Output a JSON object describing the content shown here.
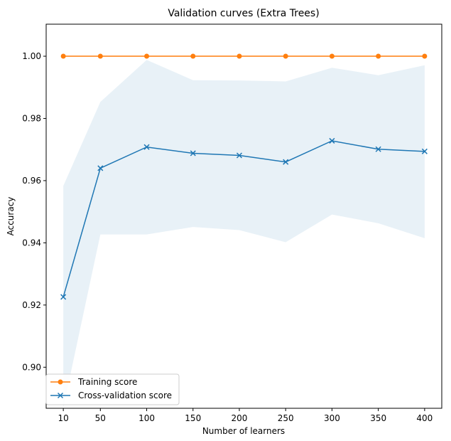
{
  "chart_data": {
    "type": "line",
    "title": "Validation curves (Extra Trees)",
    "xlabel": "Number of learners",
    "ylabel": "Accuracy",
    "x": [
      10,
      50,
      100,
      150,
      200,
      250,
      300,
      350,
      400
    ],
    "xticks": [
      "10",
      "50",
      "100",
      "150",
      "200",
      "250",
      "300",
      "350",
      "400"
    ],
    "ylim": [
      0.8868,
      1.0103
    ],
    "yticks": [
      0.9,
      0.92,
      0.94,
      0.96,
      0.98,
      1.0
    ],
    "ytick_labels": [
      "0.90",
      "0.92",
      "0.94",
      "0.96",
      "0.98",
      "1.00"
    ],
    "grid": false,
    "legend_position": "lower-left",
    "series": [
      {
        "name": "Training score",
        "color": "#ff7f0e",
        "marker": "circle",
        "values": [
          1.0,
          1.0,
          1.0,
          1.0,
          1.0,
          1.0,
          1.0,
          1.0,
          1.0
        ],
        "band_lower": [
          1.0,
          1.0,
          1.0,
          1.0,
          1.0,
          1.0,
          1.0,
          1.0,
          1.0
        ],
        "band_upper": [
          1.0,
          1.0,
          1.0,
          1.0,
          1.0,
          1.0,
          1.0,
          1.0,
          1.0
        ]
      },
      {
        "name": "Cross-validation score",
        "color": "#1f77b4",
        "marker": "x",
        "values": [
          0.9226,
          0.964,
          0.9708,
          0.9688,
          0.9681,
          0.966,
          0.9728,
          0.9701,
          0.9694
        ],
        "band_lower": [
          0.887,
          0.9427,
          0.9427,
          0.9451,
          0.9441,
          0.9402,
          0.9491,
          0.9463,
          0.9415
        ],
        "band_upper": [
          0.9583,
          0.9853,
          0.9988,
          0.9923,
          0.9922,
          0.9919,
          0.9963,
          0.9939,
          0.9971
        ]
      }
    ]
  }
}
